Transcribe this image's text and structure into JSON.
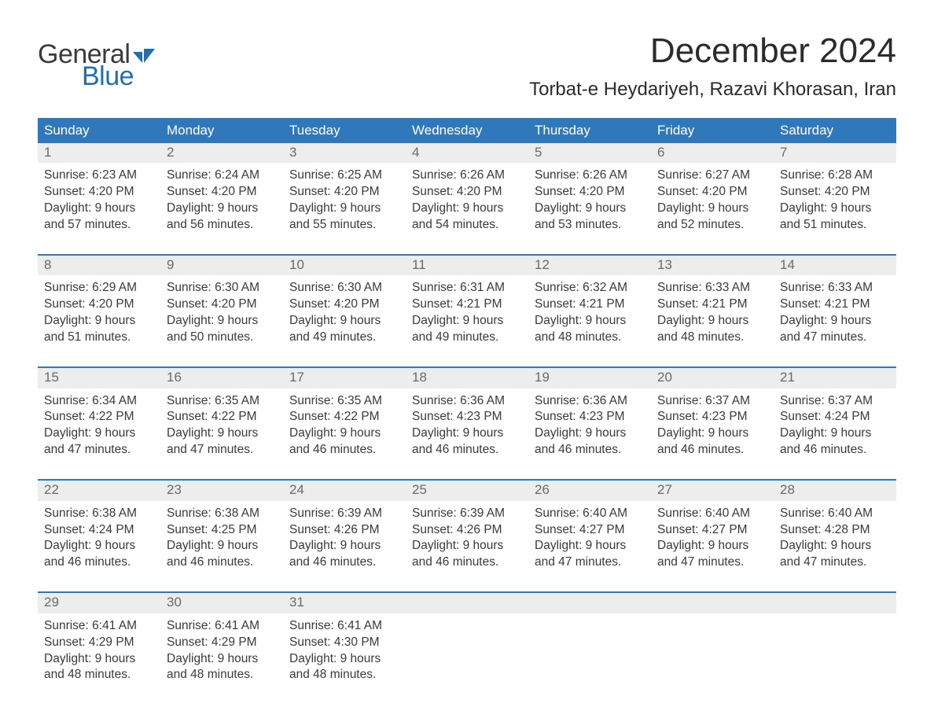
{
  "colors": {
    "header_bg": "#2f78bc",
    "header_text": "#ffffff",
    "daynum_bg": "#ededed",
    "daynum_text": "#6a6a6a",
    "body_text": "#3a3a3a",
    "rule": "#2f78bc",
    "logo_gray": "#3a3a3a",
    "logo_blue": "#1f6fb2",
    "page_bg": "#ffffff"
  },
  "typography": {
    "title_fontsize": 44,
    "location_fontsize": 24,
    "header_fontsize": 17,
    "daynum_fontsize": 17,
    "cell_fontsize": 15.5,
    "logo_fontsize": 34
  },
  "logo": {
    "line1": "General",
    "line2": "Blue"
  },
  "title": "December 2024",
  "location": "Torbat-e Heydariyeh, Razavi Khorasan, Iran",
  "headers": [
    "Sunday",
    "Monday",
    "Tuesday",
    "Wednesday",
    "Thursday",
    "Friday",
    "Saturday"
  ],
  "weeks": [
    [
      {
        "n": "1",
        "sr": "Sunrise: 6:23 AM",
        "ss": "Sunset: 4:20 PM",
        "d1": "Daylight: 9 hours",
        "d2": "and 57 minutes."
      },
      {
        "n": "2",
        "sr": "Sunrise: 6:24 AM",
        "ss": "Sunset: 4:20 PM",
        "d1": "Daylight: 9 hours",
        "d2": "and 56 minutes."
      },
      {
        "n": "3",
        "sr": "Sunrise: 6:25 AM",
        "ss": "Sunset: 4:20 PM",
        "d1": "Daylight: 9 hours",
        "d2": "and 55 minutes."
      },
      {
        "n": "4",
        "sr": "Sunrise: 6:26 AM",
        "ss": "Sunset: 4:20 PM",
        "d1": "Daylight: 9 hours",
        "d2": "and 54 minutes."
      },
      {
        "n": "5",
        "sr": "Sunrise: 6:26 AM",
        "ss": "Sunset: 4:20 PM",
        "d1": "Daylight: 9 hours",
        "d2": "and 53 minutes."
      },
      {
        "n": "6",
        "sr": "Sunrise: 6:27 AM",
        "ss": "Sunset: 4:20 PM",
        "d1": "Daylight: 9 hours",
        "d2": "and 52 minutes."
      },
      {
        "n": "7",
        "sr": "Sunrise: 6:28 AM",
        "ss": "Sunset: 4:20 PM",
        "d1": "Daylight: 9 hours",
        "d2": "and 51 minutes."
      }
    ],
    [
      {
        "n": "8",
        "sr": "Sunrise: 6:29 AM",
        "ss": "Sunset: 4:20 PM",
        "d1": "Daylight: 9 hours",
        "d2": "and 51 minutes."
      },
      {
        "n": "9",
        "sr": "Sunrise: 6:30 AM",
        "ss": "Sunset: 4:20 PM",
        "d1": "Daylight: 9 hours",
        "d2": "and 50 minutes."
      },
      {
        "n": "10",
        "sr": "Sunrise: 6:30 AM",
        "ss": "Sunset: 4:20 PM",
        "d1": "Daylight: 9 hours",
        "d2": "and 49 minutes."
      },
      {
        "n": "11",
        "sr": "Sunrise: 6:31 AM",
        "ss": "Sunset: 4:21 PM",
        "d1": "Daylight: 9 hours",
        "d2": "and 49 minutes."
      },
      {
        "n": "12",
        "sr": "Sunrise: 6:32 AM",
        "ss": "Sunset: 4:21 PM",
        "d1": "Daylight: 9 hours",
        "d2": "and 48 minutes."
      },
      {
        "n": "13",
        "sr": "Sunrise: 6:33 AM",
        "ss": "Sunset: 4:21 PM",
        "d1": "Daylight: 9 hours",
        "d2": "and 48 minutes."
      },
      {
        "n": "14",
        "sr": "Sunrise: 6:33 AM",
        "ss": "Sunset: 4:21 PM",
        "d1": "Daylight: 9 hours",
        "d2": "and 47 minutes."
      }
    ],
    [
      {
        "n": "15",
        "sr": "Sunrise: 6:34 AM",
        "ss": "Sunset: 4:22 PM",
        "d1": "Daylight: 9 hours",
        "d2": "and 47 minutes."
      },
      {
        "n": "16",
        "sr": "Sunrise: 6:35 AM",
        "ss": "Sunset: 4:22 PM",
        "d1": "Daylight: 9 hours",
        "d2": "and 47 minutes."
      },
      {
        "n": "17",
        "sr": "Sunrise: 6:35 AM",
        "ss": "Sunset: 4:22 PM",
        "d1": "Daylight: 9 hours",
        "d2": "and 46 minutes."
      },
      {
        "n": "18",
        "sr": "Sunrise: 6:36 AM",
        "ss": "Sunset: 4:23 PM",
        "d1": "Daylight: 9 hours",
        "d2": "and 46 minutes."
      },
      {
        "n": "19",
        "sr": "Sunrise: 6:36 AM",
        "ss": "Sunset: 4:23 PM",
        "d1": "Daylight: 9 hours",
        "d2": "and 46 minutes."
      },
      {
        "n": "20",
        "sr": "Sunrise: 6:37 AM",
        "ss": "Sunset: 4:23 PM",
        "d1": "Daylight: 9 hours",
        "d2": "and 46 minutes."
      },
      {
        "n": "21",
        "sr": "Sunrise: 6:37 AM",
        "ss": "Sunset: 4:24 PM",
        "d1": "Daylight: 9 hours",
        "d2": "and 46 minutes."
      }
    ],
    [
      {
        "n": "22",
        "sr": "Sunrise: 6:38 AM",
        "ss": "Sunset: 4:24 PM",
        "d1": "Daylight: 9 hours",
        "d2": "and 46 minutes."
      },
      {
        "n": "23",
        "sr": "Sunrise: 6:38 AM",
        "ss": "Sunset: 4:25 PM",
        "d1": "Daylight: 9 hours",
        "d2": "and 46 minutes."
      },
      {
        "n": "24",
        "sr": "Sunrise: 6:39 AM",
        "ss": "Sunset: 4:26 PM",
        "d1": "Daylight: 9 hours",
        "d2": "and 46 minutes."
      },
      {
        "n": "25",
        "sr": "Sunrise: 6:39 AM",
        "ss": "Sunset: 4:26 PM",
        "d1": "Daylight: 9 hours",
        "d2": "and 46 minutes."
      },
      {
        "n": "26",
        "sr": "Sunrise: 6:40 AM",
        "ss": "Sunset: 4:27 PM",
        "d1": "Daylight: 9 hours",
        "d2": "and 47 minutes."
      },
      {
        "n": "27",
        "sr": "Sunrise: 6:40 AM",
        "ss": "Sunset: 4:27 PM",
        "d1": "Daylight: 9 hours",
        "d2": "and 47 minutes."
      },
      {
        "n": "28",
        "sr": "Sunrise: 6:40 AM",
        "ss": "Sunset: 4:28 PM",
        "d1": "Daylight: 9 hours",
        "d2": "and 47 minutes."
      }
    ],
    [
      {
        "n": "29",
        "sr": "Sunrise: 6:41 AM",
        "ss": "Sunset: 4:29 PM",
        "d1": "Daylight: 9 hours",
        "d2": "and 48 minutes."
      },
      {
        "n": "30",
        "sr": "Sunrise: 6:41 AM",
        "ss": "Sunset: 4:29 PM",
        "d1": "Daylight: 9 hours",
        "d2": "and 48 minutes."
      },
      {
        "n": "31",
        "sr": "Sunrise: 6:41 AM",
        "ss": "Sunset: 4:30 PM",
        "d1": "Daylight: 9 hours",
        "d2": "and 48 minutes."
      },
      null,
      null,
      null,
      null
    ]
  ]
}
